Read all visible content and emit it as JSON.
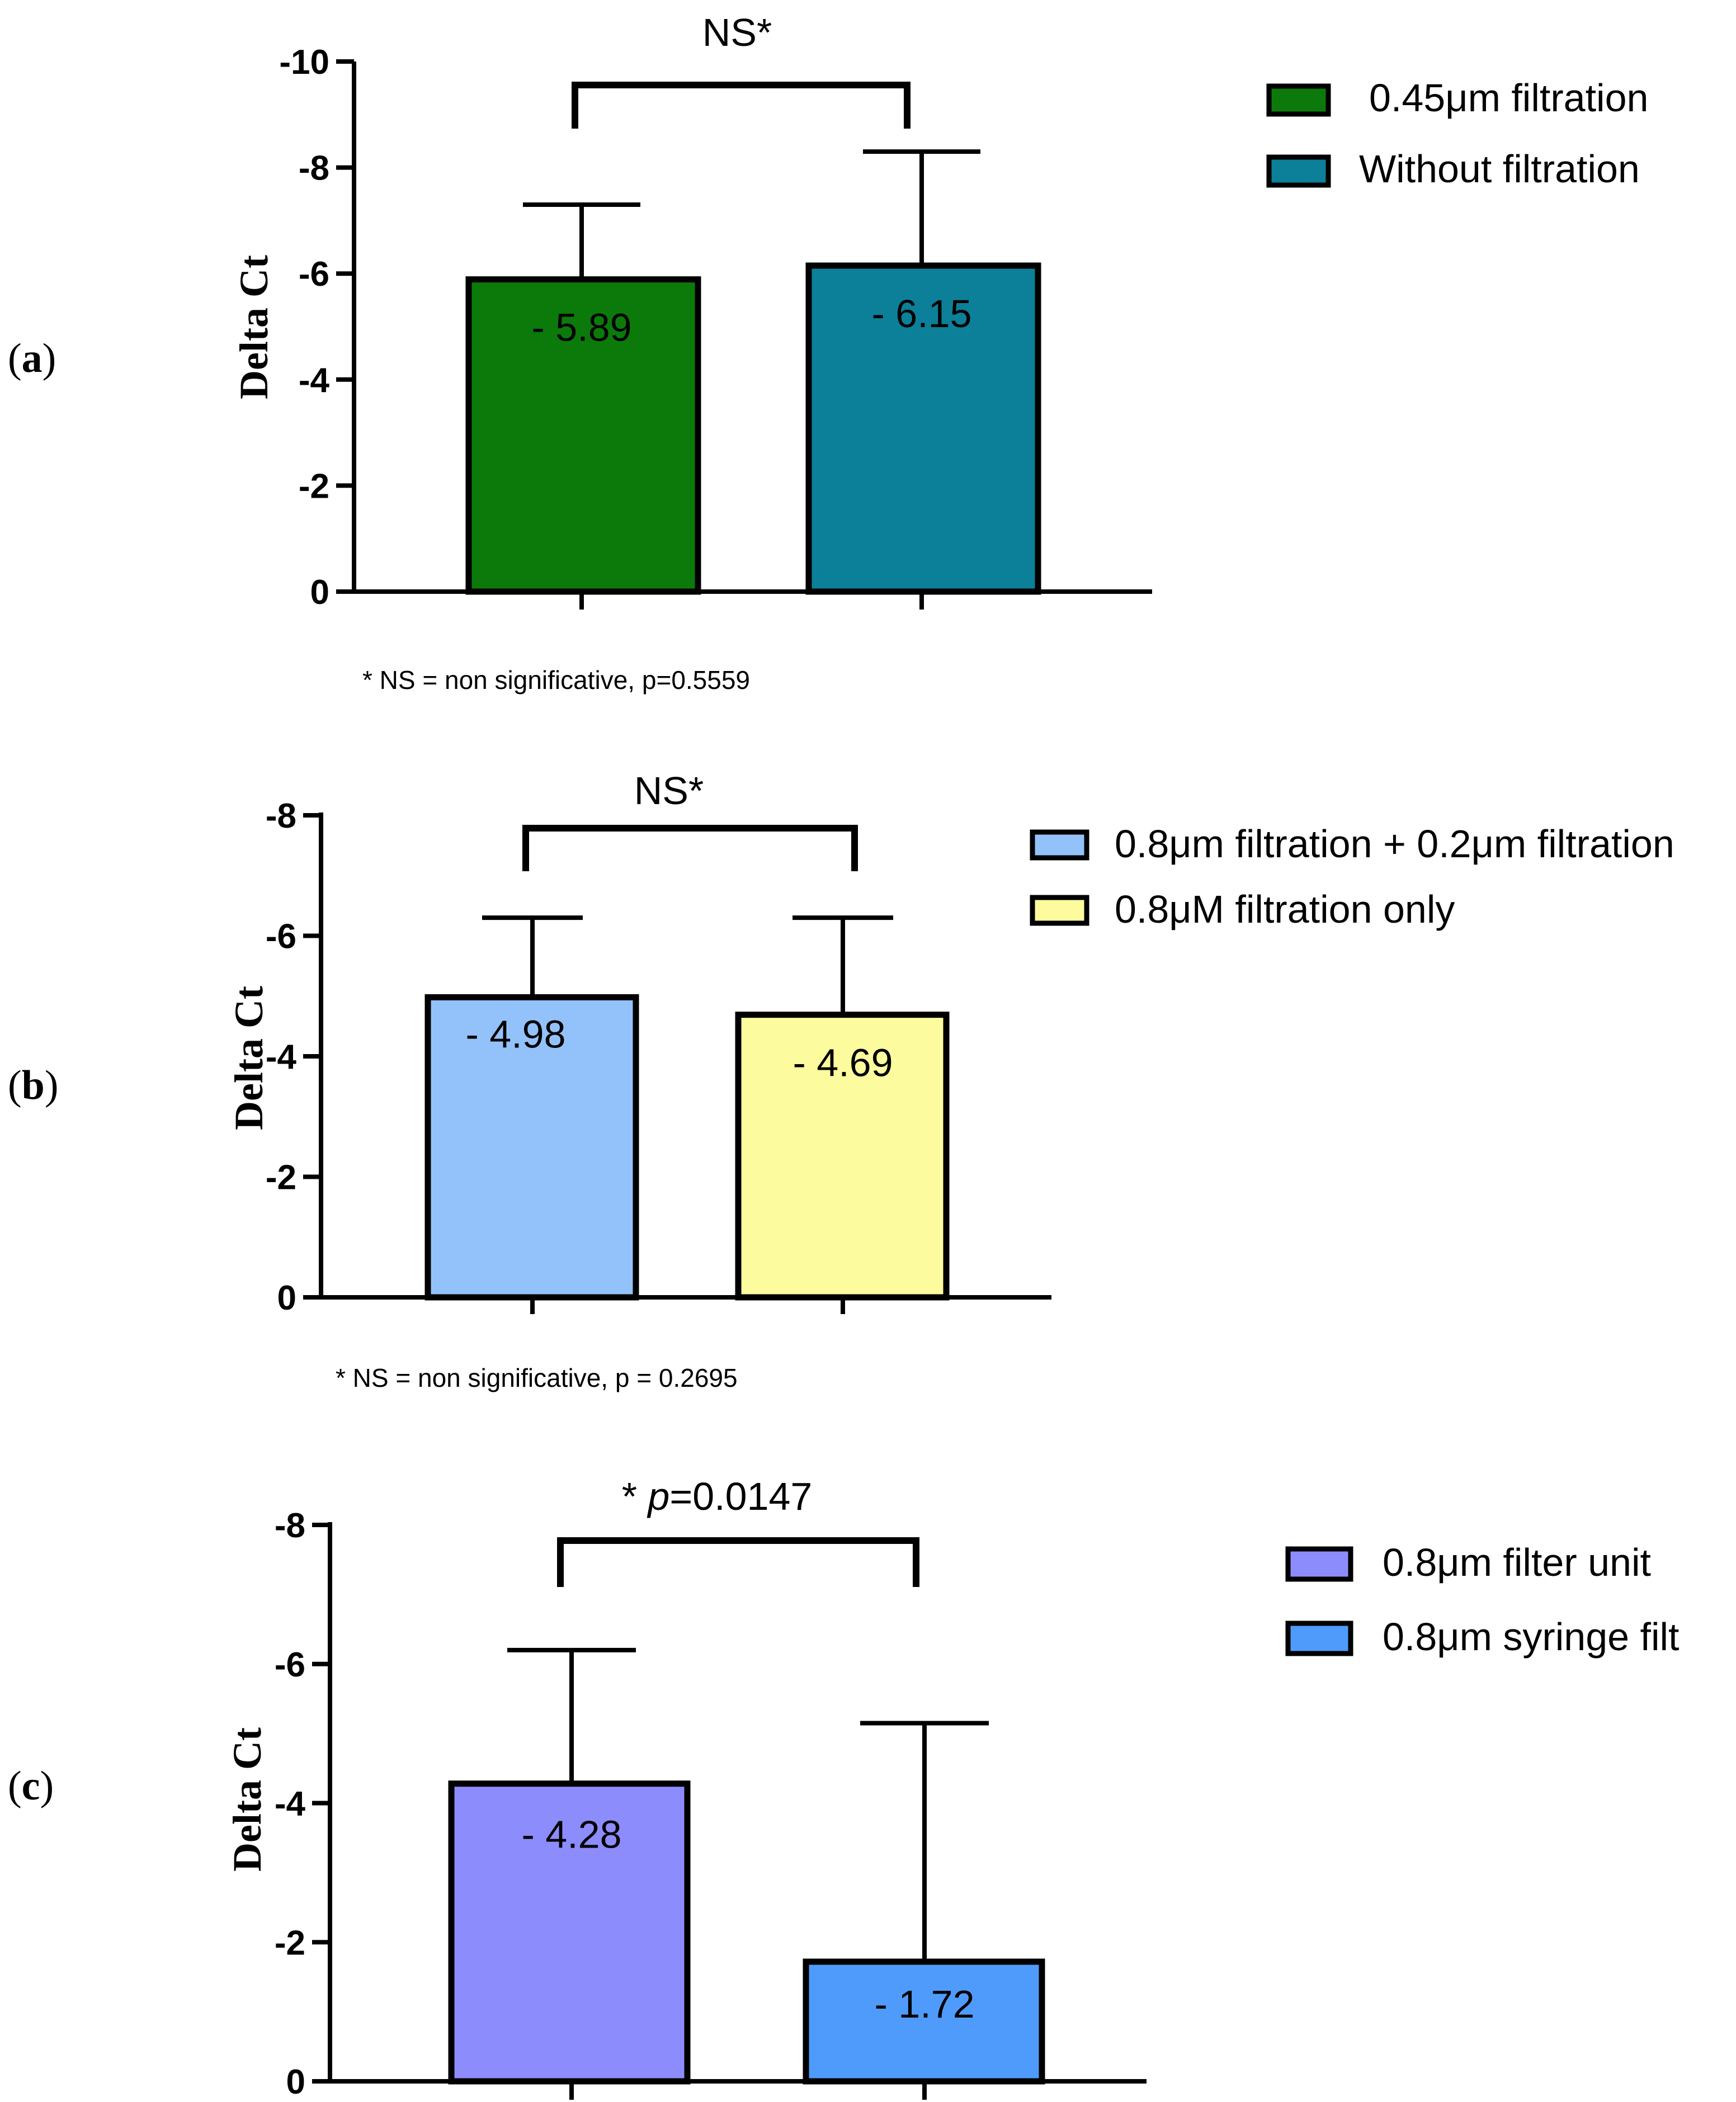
{
  "chart_data": [
    {
      "panel": "a",
      "type": "bar",
      "ylabel": "Delta Ct",
      "ylim": [
        0,
        -10
      ],
      "yticks": [
        0,
        -2,
        -4,
        -6,
        -8,
        -10
      ],
      "ytick_labels": [
        "0",
        "-2",
        "-4",
        "-6",
        "-8",
        "-10"
      ],
      "categories": [
        "0.45μm filtration",
        "Without filtration"
      ],
      "values": [
        -5.89,
        -6.15
      ],
      "error_upper": [
        -7.3,
        -8.3
      ],
      "value_labels": [
        "- 5.89",
        "- 6.15"
      ],
      "colors": [
        "#0b7a0b",
        "#0c7f99"
      ],
      "significance": "NS*",
      "footnote": "* NS = non significative, p=0.5559"
    },
    {
      "panel": "b",
      "type": "bar",
      "ylabel": "Delta Ct",
      "ylim": [
        0,
        -8
      ],
      "yticks": [
        0,
        -2,
        -4,
        -6,
        -8
      ],
      "ytick_labels": [
        "0",
        "-2",
        "-4",
        "-6",
        "-8"
      ],
      "categories": [
        "0.8μm filtration + 0.2μm filtration",
        "0.8μM filtration only"
      ],
      "values": [
        -4.98,
        -4.69
      ],
      "error_upper": [
        -6.3,
        -6.3
      ],
      "value_labels": [
        "- 4.98",
        "- 4.69"
      ],
      "colors": [
        "#93c2fa",
        "#fcfc9e"
      ],
      "significance": "NS*",
      "footnote": "* NS = non significative, p = 0.2695"
    },
    {
      "panel": "c",
      "type": "bar",
      "ylabel": "Delta Ct",
      "ylim": [
        0,
        -8
      ],
      "yticks": [
        0,
        -2,
        -4,
        -6,
        -8
      ],
      "ytick_labels": [
        "0",
        "-2",
        "-4",
        "-6",
        "-8"
      ],
      "categories": [
        "0.8μm filter unit",
        "0.8μm syringe filt"
      ],
      "values": [
        -4.28,
        -1.72
      ],
      "error_upper": [
        -6.2,
        -5.15
      ],
      "value_labels": [
        "- 4.28",
        "- 1.72"
      ],
      "colors": [
        "#8d8cfc",
        "#4f9bfb"
      ],
      "significance_star": "* ",
      "significance_p": "p",
      "significance_value": "=0.0147",
      "footnote": ""
    }
  ],
  "panel_labels": {
    "a_open": "(",
    "a_letter": "a",
    "a_close": ")",
    "b_open": "(",
    "b_letter": "b",
    "b_close": ")",
    "c_open": "(",
    "c_letter": "c",
    "c_close": ")"
  }
}
